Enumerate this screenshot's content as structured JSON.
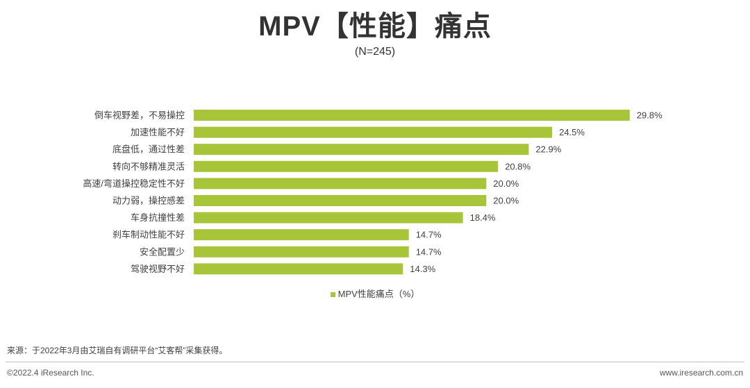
{
  "chart_data": {
    "type": "bar",
    "orientation": "horizontal",
    "title": "MPV【性能】痛点",
    "subtitle": "(N=245)",
    "categories": [
      "倒车视野差，不易操控",
      "加速性能不好",
      "底盘低，通过性差",
      "转向不够精准灵活",
      "高速/弯道操控稳定性不好",
      "动力弱，操控感差",
      "车身抗撞性差",
      "刹车制动性能不好",
      "安全配置少",
      "驾驶视野不好"
    ],
    "series": [
      {
        "name": "MPV性能痛点（%）",
        "values": [
          29.8,
          24.5,
          22.9,
          20.8,
          20.0,
          20.0,
          18.4,
          14.7,
          14.7,
          14.3
        ],
        "color": "#a8c53a"
      }
    ],
    "data_labels": [
      "29.8%",
      "24.5%",
      "22.9%",
      "20.8%",
      "20.0%",
      "20.0%",
      "18.4%",
      "14.7%",
      "14.7%",
      "14.3%"
    ],
    "xlim": [
      0,
      30
    ],
    "axes_visible": false,
    "grid": false,
    "legend": {
      "position": "bottom"
    }
  },
  "footer": {
    "source": "来源：于2022年3月由艾瑞自有调研平台“艾客帮”采集获得。",
    "copyright": "©2022.4 iResearch Inc.",
    "website": "www.iresearch.com.cn"
  }
}
